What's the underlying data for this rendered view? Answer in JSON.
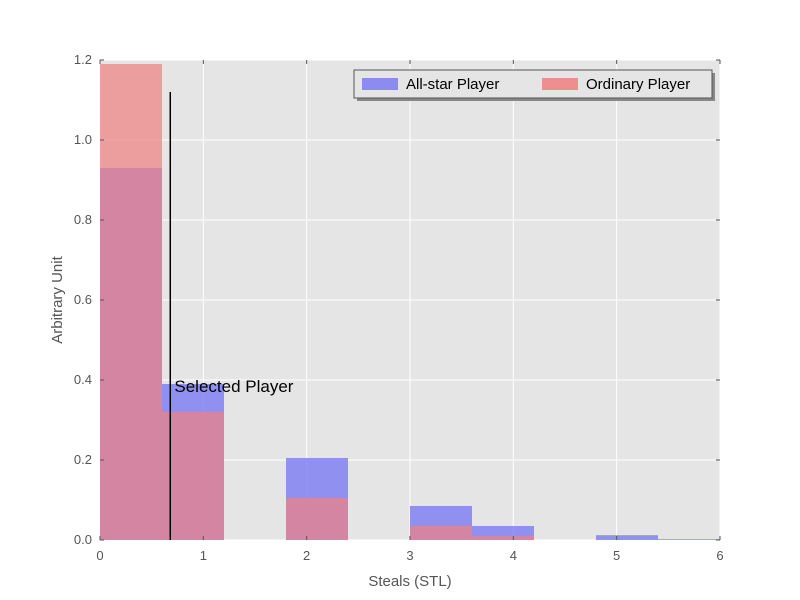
{
  "chart_data": {
    "type": "bar",
    "subtype": "overlaid-histogram",
    "title": "",
    "xlabel": "Steals (STL)",
    "ylabel": "Arbitrary Unit",
    "xlim": [
      0,
      6
    ],
    "ylim": [
      0,
      1.2
    ],
    "xticks": [
      "0",
      "1",
      "2",
      "3",
      "4",
      "5",
      "6"
    ],
    "yticks": [
      "0.0",
      "0.2",
      "0.4",
      "0.6",
      "0.8",
      "1.0",
      "1.2"
    ],
    "bin_edges": [
      0,
      0.6,
      1.2,
      1.8,
      2.4,
      3.0,
      3.6,
      4.2,
      4.8,
      5.4,
      6.0
    ],
    "series": [
      {
        "name": "All-star Player",
        "color": "#7b7bf2",
        "values": [
          0.93,
          0.39,
          0.0,
          0.205,
          0.0,
          0.085,
          0.035,
          0.0,
          0.012,
          0.002
        ]
      },
      {
        "name": "Ordinary Player",
        "color": "#f08080",
        "values": [
          1.19,
          0.32,
          0.0,
          0.105,
          0.0,
          0.035,
          0.01,
          0.0,
          0.0,
          0.0
        ]
      }
    ],
    "annotation": {
      "text": "Selected Player",
      "x": 0.68,
      "y_top": 1.12,
      "text_x": 0.72,
      "text_y": 0.37
    },
    "grid": true,
    "legend": "top-right",
    "background": "#e5e5e5"
  }
}
